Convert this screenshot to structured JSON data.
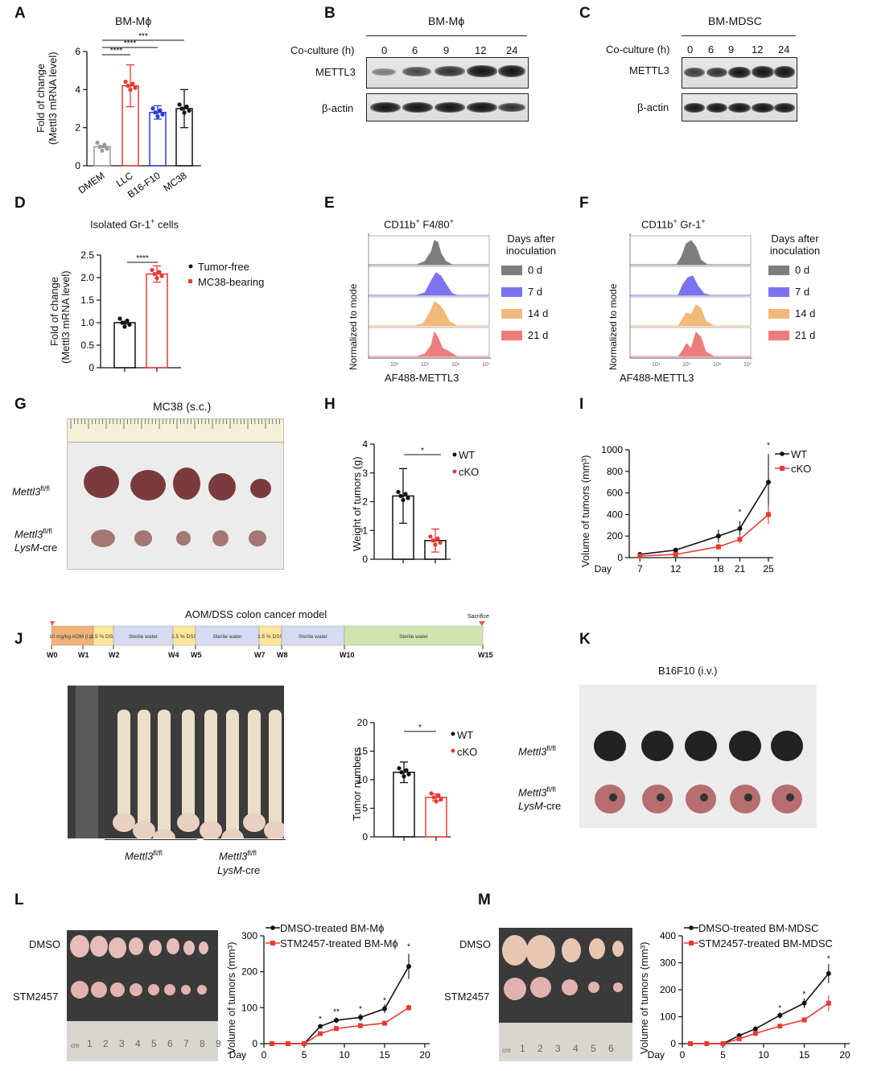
{
  "panels": {
    "A": {
      "label": "A",
      "title": "BM-Mϕ",
      "ylabel": "Fold of change",
      "ylabel2": "(Mettl3 mRNA level)",
      "yticks": [
        "0",
        "2",
        "4",
        "6"
      ],
      "sig": [
        "***",
        "****",
        "****"
      ]
    },
    "B": {
      "label": "B",
      "title": "BM-Mϕ",
      "coculture": "Co-culture (h)",
      "times": [
        "0",
        "6",
        "9",
        "12",
        "24"
      ],
      "row1": "METTL3",
      "row2": "β-actin"
    },
    "C": {
      "label": "C",
      "title": "BM-MDSC",
      "coculture": "Co-culture (h)",
      "times": [
        "0",
        "6",
        "9",
        "12",
        "24"
      ],
      "row1": "METTL3",
      "row2": "β-actin"
    },
    "D": {
      "label": "D",
      "title": "Isolated Gr-1",
      "title_sup": "+",
      "title_end": " cells",
      "ylabel": "Fold of change",
      "ylabel2": "(Mettl3 mRNA level)",
      "yticks": [
        "0",
        "0.5",
        "1.0",
        "1.5",
        "2.0",
        "2.5"
      ],
      "sig": "****",
      "legend": [
        "Tumor-free",
        "MC38-bearing"
      ]
    },
    "E": {
      "label": "E",
      "title": "CD11b",
      "sup1": "+",
      "title_mid": " F4/80",
      "sup2": "+",
      "ylabel": "Normalized to mode",
      "xlabel": "AF488-METTL3",
      "legend_title": "Days after inoculation",
      "days": [
        "0 d",
        "7 d",
        "14 d",
        "21 d"
      ]
    },
    "F": {
      "label": "F",
      "title": "CD11b",
      "sup1": "+",
      "title_mid": " Gr-1",
      "sup2": "+",
      "ylabel": "Normalized to mode",
      "xlabel": "AF488-METTL3",
      "legend_title": "Days after inoculation",
      "days": [
        "0 d",
        "7 d",
        "14 d",
        "21 d"
      ]
    },
    "G": {
      "label": "G",
      "title": "MC38 (s.c.)",
      "row1": "Mettl3",
      "row1_sup": "fl/fl",
      "row2a": "Mettl3",
      "row2_sup": "fl/fl",
      "row2b": "LysM",
      "row2c": "-cre"
    },
    "H": {
      "label": "H",
      "ylabel": "Weight of tumors (g)",
      "yticks": [
        "0",
        "1",
        "2",
        "3",
        "4"
      ],
      "sig": "*",
      "legend": [
        "WT",
        "cKO"
      ]
    },
    "I": {
      "label": "I",
      "ylabel": "Volume of tumors (mm³)",
      "yticks": [
        "0",
        "200",
        "400",
        "600",
        "800",
        "1000"
      ],
      "xlabel": "Day",
      "xticks": [
        "7",
        "12",
        "18",
        "21",
        "25"
      ],
      "sig": [
        "*",
        "*"
      ],
      "legend": [
        "WT",
        "cKO"
      ]
    },
    "J": {
      "label": "J",
      "title": "AOM/DSS colon cancer model",
      "sacrifice": "Sacrifice",
      "segments": [
        "10 mg/kg AOM (i.p.)",
        "2.5 % DSS",
        "Sterile water",
        "2.5 % DSS",
        "Sterile water",
        "2.5 % DSS",
        "Sterile water",
        "Sterile water"
      ],
      "weeks": [
        "W0",
        "W1",
        "W2",
        "W4",
        "W5",
        "W7",
        "W8",
        "W10",
        "W15"
      ],
      "group1": "Mettl3",
      "group1_sup": "fl/fl",
      "group2a": "Mettl3",
      "group2_sup": "fl/fl",
      "group2b": "LysM",
      "group2c": "-cre",
      "ylabel": "Tumor numbers",
      "yticks": [
        "0",
        "5",
        "10",
        "15",
        "20"
      ],
      "sig": "*",
      "legend": [
        "WT",
        "cKO"
      ]
    },
    "K": {
      "label": "K",
      "title": "B16F10 (i.v.)",
      "row1": "Mettl3",
      "row1_sup": "fl/fl",
      "row2a": "Mettl3",
      "row2_sup": "fl/fl",
      "row2b": "LysM",
      "row2c": "-cre"
    },
    "L": {
      "label": "L",
      "row1": "DMSO",
      "row2": "STM2457",
      "ruler": [
        "cm",
        "1",
        "2",
        "3",
        "4",
        "5",
        "6",
        "7",
        "8",
        "9"
      ],
      "ylabel": "Volume of tumors (mm³)",
      "yticks": [
        "0",
        "100",
        "200",
        "300"
      ],
      "xlabel": "Day",
      "xticks": [
        "0",
        "5",
        "10",
        "15",
        "20"
      ],
      "legend": [
        "DMSO-treated BM-Mϕ",
        "STM2457-treated BM-Mϕ"
      ],
      "sig": [
        "*",
        "**",
        "*",
        "*",
        "*"
      ]
    },
    "M": {
      "label": "M",
      "row1": "DMSO",
      "row2": "STM2457",
      "ruler": [
        "cm",
        "1",
        "2",
        "3",
        "4",
        "5",
        "6"
      ],
      "ylabel": "Volume of tumors (mm³)",
      "yticks": [
        "0",
        "100",
        "200",
        "300",
        "400"
      ],
      "xlabel": "Day",
      "xticks": [
        "0",
        "5",
        "10",
        "15",
        "20"
      ],
      "legend": [
        "DMSO-treated BM-MDSC",
        "STM2457-treated BM-MDSC"
      ],
      "sig": [
        "*",
        "*",
        "*"
      ]
    }
  },
  "colors": {
    "red": "#e83a35",
    "blue": "#2b39e0",
    "grey": "#9a9a9a",
    "black": "#111111",
    "hist0": "#7d7d7d",
    "hist7": "#7b73ee",
    "hist14": "#f2b97a",
    "hist21": "#ee7c7c"
  },
  "chart_data": [
    {
      "type": "bar",
      "panel": "A",
      "categories": [
        "DMEM",
        "LLC",
        "B16-F10",
        "MC38"
      ],
      "values": [
        1.0,
        4.2,
        2.8,
        3.0
      ],
      "errors": [
        0.05,
        1.1,
        0.35,
        1.0
      ],
      "ylim": [
        0,
        6
      ],
      "ylabel": "Fold of change (Mettl3 mRNA level)"
    },
    {
      "type": "bar",
      "panel": "D",
      "categories": [
        "Tumor-free",
        "MC38-bearing"
      ],
      "values": [
        1.0,
        2.08
      ],
      "errors": [
        0.03,
        0.18
      ],
      "ylim": [
        0,
        2.5
      ]
    },
    {
      "type": "bar",
      "panel": "H",
      "categories": [
        "WT",
        "cKO"
      ],
      "values": [
        2.2,
        0.65
      ],
      "errors": [
        0.95,
        0.4
      ],
      "ylim": [
        0,
        4
      ]
    },
    {
      "type": "line",
      "panel": "I",
      "x": [
        7,
        12,
        18,
        21,
        25
      ],
      "series": [
        {
          "name": "WT",
          "values": [
            30,
            70,
            200,
            270,
            700
          ],
          "errors": [
            10,
            20,
            60,
            70,
            260
          ]
        },
        {
          "name": "cKO",
          "values": [
            15,
            30,
            100,
            170,
            400
          ],
          "errors": [
            5,
            10,
            30,
            40,
            90
          ]
        }
      ],
      "ylim": [
        0,
        1000
      ]
    },
    {
      "type": "bar",
      "panel": "J",
      "categories": [
        "WT",
        "cKO"
      ],
      "values": [
        11.3,
        6.9
      ],
      "errors": [
        1.8,
        0.6
      ],
      "ylim": [
        0,
        20
      ]
    },
    {
      "type": "line",
      "panel": "L",
      "x": [
        1,
        3,
        5,
        7,
        9,
        12,
        15,
        18
      ],
      "series": [
        {
          "name": "DMSO-treated BM-Mϕ",
          "values": [
            0,
            0,
            0,
            48,
            65,
            73,
            97,
            215
          ],
          "errors": [
            0,
            0,
            0,
            6,
            8,
            10,
            12,
            35
          ]
        },
        {
          "name": "STM2457-treated BM-Mϕ",
          "values": [
            0,
            0,
            0,
            28,
            42,
            50,
            57,
            100
          ],
          "errors": [
            0,
            0,
            0,
            3,
            4,
            4,
            4,
            8
          ]
        }
      ],
      "ylim": [
        0,
        300
      ]
    },
    {
      "type": "line",
      "panel": "M",
      "x": [
        1,
        3,
        5,
        7,
        9,
        12,
        15,
        18
      ],
      "series": [
        {
          "name": "DMSO-treated BM-MDSC",
          "values": [
            0,
            0,
            0,
            30,
            55,
            105,
            150,
            260
          ],
          "errors": [
            0,
            0,
            0,
            3,
            5,
            12,
            18,
            35
          ]
        },
        {
          "name": "STM2457-treated BM-MDSC",
          "values": [
            0,
            0,
            0,
            18,
            38,
            65,
            88,
            150
          ],
          "errors": [
            0,
            0,
            0,
            2,
            4,
            8,
            10,
            30
          ]
        }
      ],
      "ylim": [
        0,
        400
      ]
    }
  ]
}
